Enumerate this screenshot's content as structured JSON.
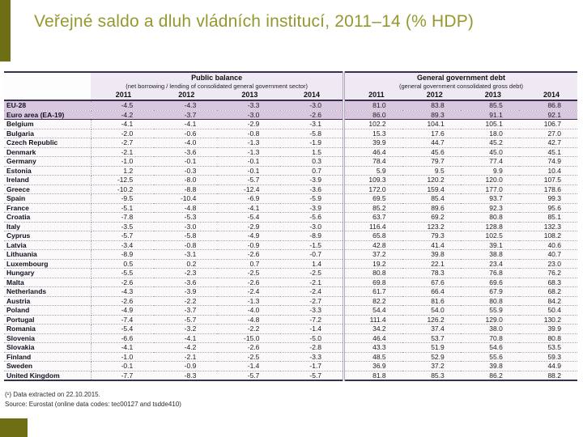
{
  "slide": {
    "title": "Veřejné saldo a dluh vládních institucí, 2011–14 (% HDP)",
    "accent_color": "#6E6E14",
    "title_color": "#95982D"
  },
  "table": {
    "highlight_color": "#D9C7E0",
    "col_groups": [
      {
        "title": "Public balance",
        "subtitle": "(net borrowing / lending of consolidated general government sector)"
      },
      {
        "title": "General government debt",
        "subtitle": "(general government consolidated gross debt)"
      }
    ],
    "years": [
      "2011",
      "2012",
      "2013",
      "2014",
      "2011",
      "2012",
      "2013",
      "2014"
    ],
    "rows": [
      {
        "name": "EU-28",
        "aggregate": true,
        "values": [
          "-4.5",
          "-4.3",
          "-3.3",
          "-3.0",
          "81.0",
          "83.8",
          "85.5",
          "86.8"
        ]
      },
      {
        "name": "Euro area (EA-19)",
        "aggregate": true,
        "values": [
          "-4.2",
          "-3.7",
          "-3.0",
          "-2.6",
          "86.0",
          "89.3",
          "91.1",
          "92.1"
        ]
      },
      {
        "name": "Belgium",
        "aggregate": false,
        "values": [
          "-4.1",
          "-4.1",
          "-2.9",
          "-3.1",
          "102.2",
          "104.1",
          "105.1",
          "106.7"
        ]
      },
      {
        "name": "Bulgaria",
        "aggregate": false,
        "values": [
          "-2.0",
          "-0.6",
          "-0.8",
          "-5.8",
          "15.3",
          "17.6",
          "18.0",
          "27.0"
        ]
      },
      {
        "name": "Czech Republic",
        "aggregate": false,
        "values": [
          "-2.7",
          "-4.0",
          "-1.3",
          "-1.9",
          "39.9",
          "44.7",
          "45.2",
          "42.7"
        ]
      },
      {
        "name": "Denmark",
        "aggregate": false,
        "values": [
          "-2.1",
          "-3.6",
          "-1.3",
          "1.5",
          "46.4",
          "45.6",
          "45.0",
          "45.1"
        ]
      },
      {
        "name": "Germany",
        "aggregate": false,
        "values": [
          "-1.0",
          "-0.1",
          "-0.1",
          "0.3",
          "78.4",
          "79.7",
          "77.4",
          "74.9"
        ]
      },
      {
        "name": "Estonia",
        "aggregate": false,
        "values": [
          "1.2",
          "-0.3",
          "-0.1",
          "0.7",
          "5.9",
          "9.5",
          "9.9",
          "10.4"
        ]
      },
      {
        "name": "Ireland",
        "aggregate": false,
        "values": [
          "-12.5",
          "-8.0",
          "-5.7",
          "-3.9",
          "109.3",
          "120.2",
          "120.0",
          "107.5"
        ]
      },
      {
        "name": "Greece",
        "aggregate": false,
        "values": [
          "-10.2",
          "-8.8",
          "-12.4",
          "-3.6",
          "172.0",
          "159.4",
          "177.0",
          "178.6"
        ]
      },
      {
        "name": "Spain",
        "aggregate": false,
        "values": [
          "-9.5",
          "-10.4",
          "-6.9",
          "-5.9",
          "69.5",
          "85.4",
          "93.7",
          "99.3"
        ]
      },
      {
        "name": "France",
        "aggregate": false,
        "values": [
          "-5.1",
          "-4.8",
          "-4.1",
          "-3.9",
          "85.2",
          "89.6",
          "92.3",
          "95.6"
        ]
      },
      {
        "name": "Croatia",
        "aggregate": false,
        "values": [
          "-7.8",
          "-5.3",
          "-5.4",
          "-5.6",
          "63.7",
          "69.2",
          "80.8",
          "85.1"
        ]
      },
      {
        "name": "Italy",
        "aggregate": false,
        "values": [
          "-3.5",
          "-3.0",
          "-2.9",
          "-3.0",
          "116.4",
          "123.2",
          "128.8",
          "132.3"
        ]
      },
      {
        "name": "Cyprus",
        "aggregate": false,
        "values": [
          "-5.7",
          "-5.8",
          "-4.9",
          "-8.9",
          "65.8",
          "79.3",
          "102.5",
          "108.2"
        ]
      },
      {
        "name": "Latvia",
        "aggregate": false,
        "values": [
          "-3.4",
          "-0.8",
          "-0.9",
          "-1.5",
          "42.8",
          "41.4",
          "39.1",
          "40.6"
        ]
      },
      {
        "name": "Lithuania",
        "aggregate": false,
        "values": [
          "-8.9",
          "-3.1",
          "-2.6",
          "-0.7",
          "37.2",
          "39.8",
          "38.8",
          "40.7"
        ]
      },
      {
        "name": "Luxembourg",
        "aggregate": false,
        "values": [
          "0.5",
          "0.2",
          "0.7",
          "1.4",
          "19.2",
          "22.1",
          "23.4",
          "23.0"
        ]
      },
      {
        "name": "Hungary",
        "aggregate": false,
        "values": [
          "-5.5",
          "-2.3",
          "-2.5",
          "-2.5",
          "80.8",
          "78.3",
          "76.8",
          "76.2"
        ]
      },
      {
        "name": "Malta",
        "aggregate": false,
        "values": [
          "-2.6",
          "-3.6",
          "-2.6",
          "-2.1",
          "69.8",
          "67.6",
          "69.6",
          "68.3"
        ]
      },
      {
        "name": "Netherlands",
        "aggregate": false,
        "values": [
          "-4.3",
          "-3.9",
          "-2.4",
          "-2.4",
          "61.7",
          "66.4",
          "67.9",
          "68.2"
        ]
      },
      {
        "name": "Austria",
        "aggregate": false,
        "values": [
          "-2.6",
          "-2.2",
          "-1.3",
          "-2.7",
          "82.2",
          "81.6",
          "80.8",
          "84.2"
        ]
      },
      {
        "name": "Poland",
        "aggregate": false,
        "values": [
          "-4.9",
          "-3.7",
          "-4.0",
          "-3.3",
          "54.4",
          "54.0",
          "55.9",
          "50.4"
        ]
      },
      {
        "name": "Portugal",
        "aggregate": false,
        "values": [
          "-7.4",
          "-5.7",
          "-4.8",
          "-7.2",
          "111.4",
          "126.2",
          "129.0",
          "130.2"
        ]
      },
      {
        "name": "Romania",
        "aggregate": false,
        "values": [
          "-5.4",
          "-3.2",
          "-2.2",
          "-1.4",
          "34.2",
          "37.4",
          "38.0",
          "39.9"
        ]
      },
      {
        "name": "Slovenia",
        "aggregate": false,
        "values": [
          "-6.6",
          "-4.1",
          "-15.0",
          "-5.0",
          "46.4",
          "53.7",
          "70.8",
          "80.8"
        ]
      },
      {
        "name": "Slovakia",
        "aggregate": false,
        "values": [
          "-4.1",
          "-4.2",
          "-2.6",
          "-2.8",
          "43.3",
          "51.9",
          "54.6",
          "53.5"
        ]
      },
      {
        "name": "Finland",
        "aggregate": false,
        "values": [
          "-1.0",
          "-2.1",
          "-2.5",
          "-3.3",
          "48.5",
          "52.9",
          "55.6",
          "59.3"
        ]
      },
      {
        "name": "Sweden",
        "aggregate": false,
        "values": [
          "-0.1",
          "-0.9",
          "-1.4",
          "-1.7",
          "36.9",
          "37.2",
          "39.8",
          "44.9"
        ]
      },
      {
        "name": "United Kingdom",
        "aggregate": false,
        "values": [
          "-7.7",
          "-8.3",
          "-5.7",
          "-5.7",
          "81.8",
          "85.3",
          "86.2",
          "88.2"
        ]
      }
    ]
  },
  "footnotes": {
    "note": "(¹) Data extracted on 22.10.2015.",
    "source": "Source: Eurostat (online data codes: tec00127 and tsdde410)"
  }
}
